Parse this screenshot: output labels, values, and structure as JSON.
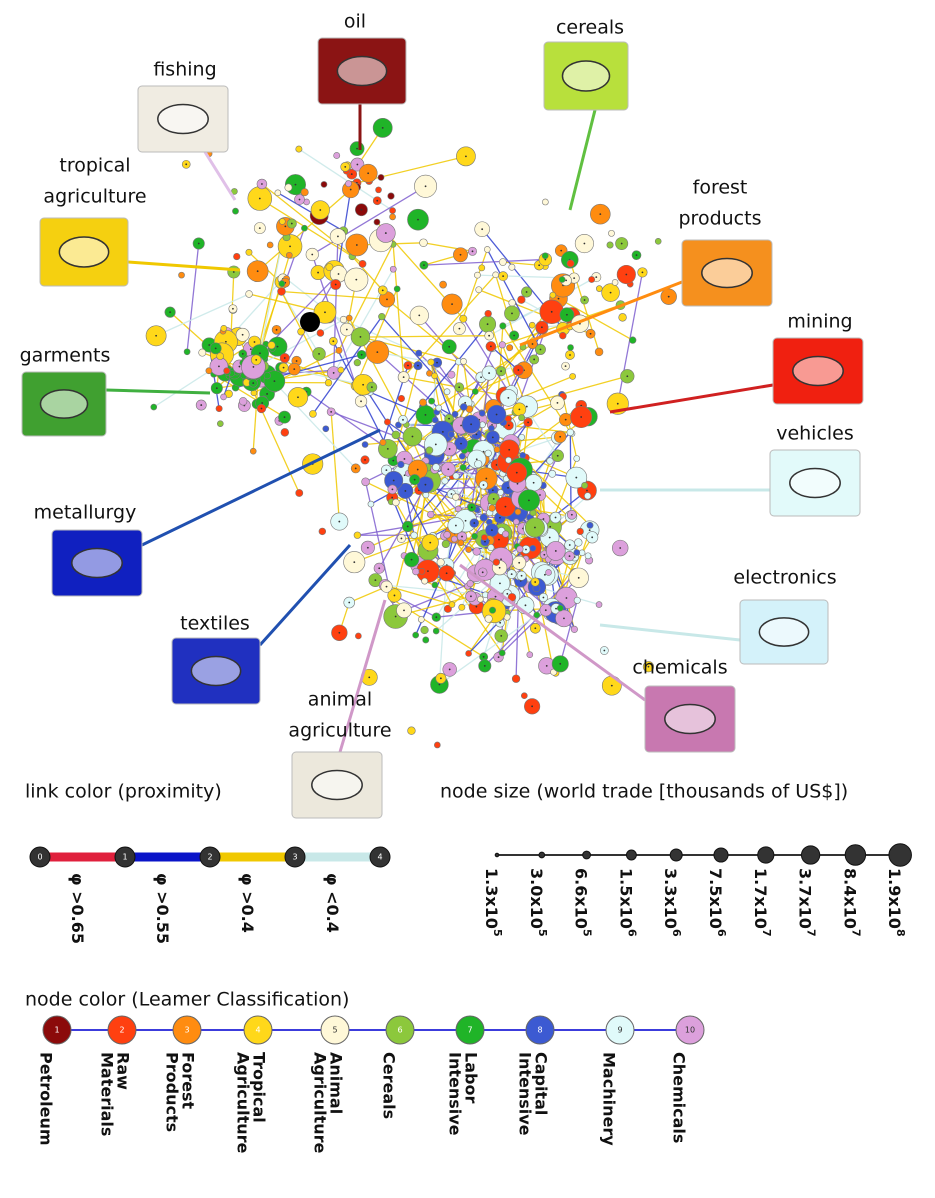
{
  "sectors": [
    {
      "lines": [
        "oil"
      ]
    },
    {
      "lines": [
        "cereals"
      ]
    },
    {
      "lines": [
        "fishing"
      ]
    },
    {
      "lines": [
        "tropical",
        "agriculture"
      ]
    },
    {
      "lines": [
        "forest",
        "products"
      ]
    },
    {
      "lines": [
        "mining"
      ]
    },
    {
      "lines": [
        "garments"
      ]
    },
    {
      "lines": [
        "vehicles"
      ]
    },
    {
      "lines": [
        "metallurgy"
      ]
    },
    {
      "lines": [
        "electronics"
      ]
    },
    {
      "lines": [
        "textiles"
      ]
    },
    {
      "lines": [
        "chemicals"
      ]
    },
    {
      "lines": [
        "animal",
        "agriculture"
      ]
    }
  ],
  "link_legend": {
    "title": "link color (proximity)",
    "nodes": [
      "0",
      "1",
      "2",
      "3",
      "4"
    ],
    "links": [
      {
        "label": "φ >0.65",
        "color": "#e0203c"
      },
      {
        "label": "φ >0.55",
        "color": "#0a14c8"
      },
      {
        "label": "φ >0.4",
        "color": "#f0c800"
      },
      {
        "label": "φ <0.4",
        "color": "#c8e8e8"
      }
    ]
  },
  "size_legend": {
    "title": "node size (world trade [thousands of US$])",
    "labels": [
      {
        "base": "1.3x10",
        "exp": "5"
      },
      {
        "base": "3.0x10",
        "exp": "5"
      },
      {
        "base": "6.6x10",
        "exp": "5"
      },
      {
        "base": "1.5x10",
        "exp": "6"
      },
      {
        "base": "3.3x10",
        "exp": "6"
      },
      {
        "base": "7.5x10",
        "exp": "6"
      },
      {
        "base": "1.7x10",
        "exp": "7"
      },
      {
        "base": "3.7x10",
        "exp": "7"
      },
      {
        "base": "8.4x10",
        "exp": "7"
      },
      {
        "base": "1.9x10",
        "exp": "8"
      }
    ]
  },
  "color_legend": {
    "title": "node color (Leamer Classification)",
    "classes": [
      {
        "number": "1",
        "lines": [
          "Petroleum"
        ],
        "color": "#8b0a0a"
      },
      {
        "number": "2",
        "lines": [
          "Raw",
          "Materials"
        ],
        "color": "#ff4010"
      },
      {
        "number": "3",
        "lines": [
          "Forest",
          "Products"
        ],
        "color": "#ff8c10"
      },
      {
        "number": "4",
        "lines": [
          "Tropical",
          "Agriculture"
        ],
        "color": "#ffd81a"
      },
      {
        "number": "5",
        "lines": [
          "Animal",
          "Agriculture"
        ],
        "color": "#fff8d8"
      },
      {
        "number": "6",
        "lines": [
          "Cereals"
        ],
        "color": "#8cc83c"
      },
      {
        "number": "7",
        "lines": [
          "Labor",
          "Intensive"
        ],
        "color": "#20b428"
      },
      {
        "number": "8",
        "lines": [
          "Capital",
          "Intensive"
        ],
        "color": "#3c5ad2"
      },
      {
        "number": "9",
        "lines": [
          "Machinery"
        ],
        "color": "#e0fafa"
      },
      {
        "number": "10",
        "lines": [
          "Chemicals"
        ],
        "color": "#dca0dc"
      }
    ]
  }
}
